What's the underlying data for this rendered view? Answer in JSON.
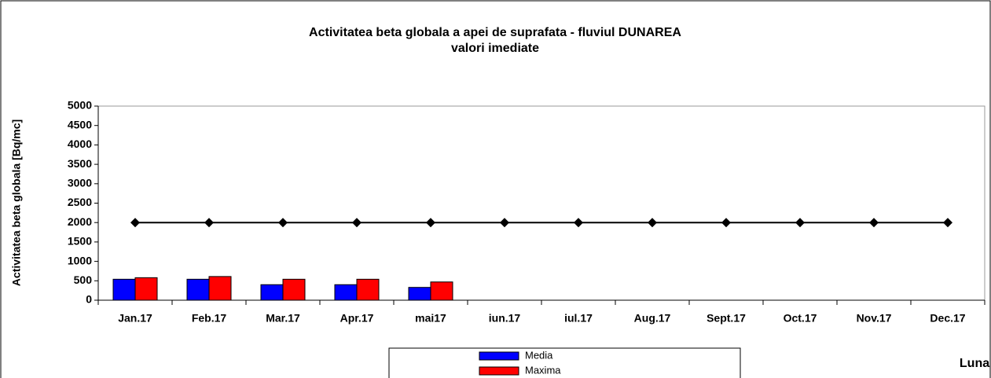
{
  "chart_data": {
    "type": "bar",
    "title": "Activitatea beta globala a apei de suprafata - fluviul DUNAREA",
    "subtitle": "valori imediate",
    "ylabel": "Activitatea beta globala [Bq/mc]",
    "xlabel": "Luna",
    "categories": [
      "Jan.17",
      "Feb.17",
      "Mar.17",
      "Apr.17",
      "mai17",
      "iun.17",
      "iul.17",
      "Aug.17",
      "Sept.17",
      "Oct.17",
      "Nov.17",
      "Dec.17"
    ],
    "series": [
      {
        "name": "Media",
        "color": "#0000ff",
        "values": [
          540,
          540,
          400,
          400,
          330,
          null,
          null,
          null,
          null,
          null,
          null,
          null
        ]
      },
      {
        "name": "Maxima",
        "color": "#ff0000",
        "values": [
          580,
          610,
          540,
          540,
          470,
          null,
          null,
          null,
          null,
          null,
          null,
          null
        ]
      },
      {
        "type": "line",
        "color": "#000000",
        "values": [
          2000,
          2000,
          2000,
          2000,
          2000,
          2000,
          2000,
          2000,
          2000,
          2000,
          2000,
          2000
        ]
      }
    ],
    "ylim": [
      0,
      5000
    ],
    "yticks": [
      0,
      500,
      1000,
      1500,
      2000,
      2500,
      3000,
      3500,
      4000,
      4500,
      5000
    ],
    "grid": false
  }
}
